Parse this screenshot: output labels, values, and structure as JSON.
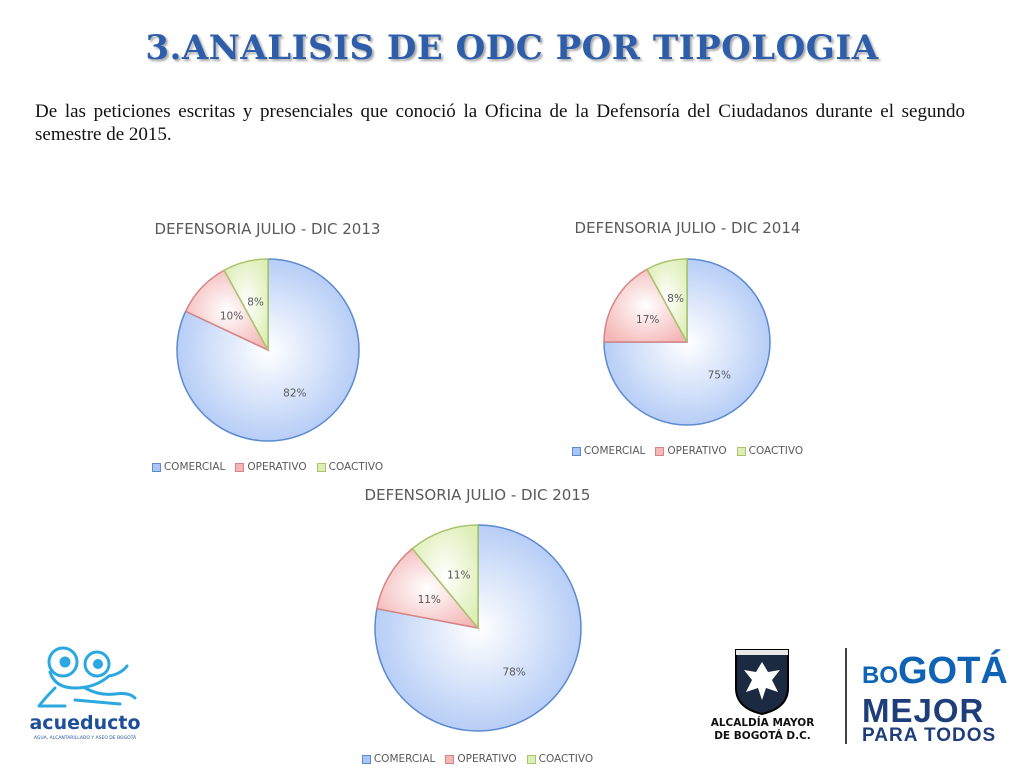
{
  "page": {
    "title": "3.ANALISIS DE ODC POR TIPOLOGIA",
    "intro": "De las peticiones escritas y presenciales que conoció la Oficina de la Defensoría del Ciudadanos durante el segundo semestre de 2015."
  },
  "colors": {
    "title": "#2E5DAA",
    "comercial": "#A9C4F5",
    "operativo": "#F4B7B7",
    "coactivo": "#DDEEB6"
  },
  "chart_data": [
    {
      "type": "pie",
      "title": "DEFENSORIA JULIO - DIC 2013",
      "categories": [
        "COMERCIAL",
        "OPERATIVO",
        "COACTIVO"
      ],
      "values": [
        82,
        10,
        8
      ],
      "labels": [
        "82%",
        "10%",
        "8%"
      ],
      "legend": "bottom"
    },
    {
      "type": "pie",
      "title": "DEFENSORIA JULIO - DIC 2014",
      "categories": [
        "COMERCIAL",
        "OPERATIVO",
        "COACTIVO"
      ],
      "values": [
        75,
        17,
        8
      ],
      "labels": [
        "75%",
        "17%",
        "8%"
      ],
      "legend": "bottom"
    },
    {
      "type": "pie",
      "title": "DEFENSORIA JULIO - DIC 2015",
      "categories": [
        "COMERCIAL",
        "OPERATIVO",
        "COACTIVO"
      ],
      "values": [
        78,
        11,
        11
      ],
      "labels": [
        "78%",
        "11%",
        "11%"
      ],
      "legend": "bottom"
    }
  ],
  "logos": {
    "acueducto_name": "acueducto",
    "acueducto_tagline": "AGUA, ALCANTARILLADO Y ASEO DE BOGOTÁ",
    "alcaldia_line1": "ALCALDÍA MAYOR",
    "alcaldia_line2": "DE BOGOTÁ D.C.",
    "bogota_part1": "BO",
    "bogota_part2": "GOTÁ",
    "bogota_line2": "MEJOR",
    "bogota_line3": "PARA TODOS"
  }
}
